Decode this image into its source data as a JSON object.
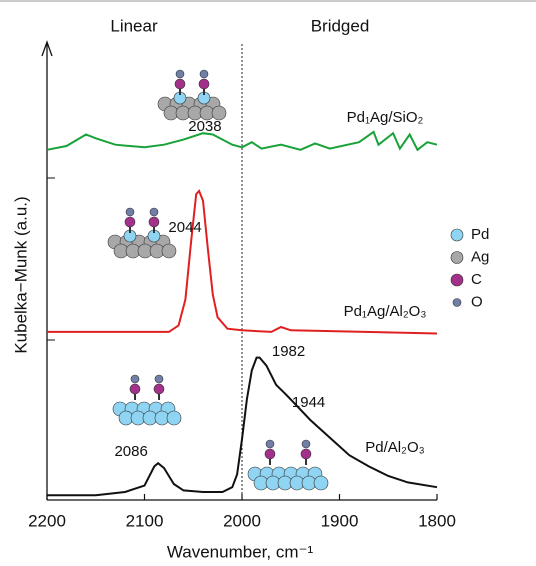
{
  "figure": {
    "ylabel": "Kubelka−Munk (a.u.)",
    "xlabel": "Wavenumber, cm⁻¹",
    "region_labels": [
      "Linear",
      "Bridged"
    ],
    "divider_x": 2000,
    "atom_legend": [
      {
        "label": "Pd",
        "color": "#8fd4f2"
      },
      {
        "label": "Ag",
        "color": "#a8a8a8"
      },
      {
        "label": "C",
        "color": "#a3308a"
      },
      {
        "label": "O",
        "color": "#6f7fa6"
      }
    ]
  },
  "chart_data": [
    {
      "type": "line",
      "name": "Pd₁Ag/SiO₂",
      "color": "#1aa23a",
      "xlim": [
        2200,
        1800
      ],
      "ylim": [
        0,
        1
      ],
      "x": [
        2200,
        2180,
        2160,
        2150,
        2130,
        2100,
        2080,
        2060,
        2040,
        2030,
        2010,
        2000,
        1990,
        1980,
        1960,
        1940,
        1925,
        1910,
        1880,
        1865,
        1860,
        1845,
        1838,
        1828,
        1820,
        1810,
        1800
      ],
      "values": [
        0.22,
        0.25,
        0.34,
        0.31,
        0.26,
        0.24,
        0.26,
        0.3,
        0.35,
        0.34,
        0.26,
        0.24,
        0.28,
        0.23,
        0.26,
        0.22,
        0.27,
        0.23,
        0.28,
        0.36,
        0.26,
        0.35,
        0.23,
        0.34,
        0.22,
        0.28,
        0.26
      ],
      "peak_labels": [
        2038
      ]
    },
    {
      "type": "line",
      "name": "Pd₁Ag/Al₂O₃",
      "color": "#e02020",
      "xlim": [
        2200,
        1800
      ],
      "ylim": [
        0,
        1
      ],
      "x": [
        2200,
        2100,
        2075,
        2065,
        2058,
        2052,
        2047,
        2044,
        2040,
        2035,
        2030,
        2025,
        2015,
        2000,
        1970,
        1960,
        1950,
        1800
      ],
      "values": [
        0.05,
        0.05,
        0.05,
        0.09,
        0.25,
        0.62,
        0.9,
        0.92,
        0.86,
        0.56,
        0.28,
        0.14,
        0.07,
        0.06,
        0.05,
        0.08,
        0.06,
        0.04
      ],
      "peak_labels": [
        2044
      ]
    },
    {
      "type": "line",
      "name": "Pd/Al₂O₃",
      "color": "#111111",
      "xlim": [
        2200,
        1800
      ],
      "ylim": [
        0,
        1
      ],
      "x": [
        2200,
        2150,
        2120,
        2100,
        2090,
        2086,
        2080,
        2070,
        2060,
        2040,
        2020,
        2010,
        2005,
        2000,
        1995,
        1990,
        1985,
        1982,
        1975,
        1965,
        1955,
        1944,
        1930,
        1910,
        1890,
        1870,
        1850,
        1830,
        1800
      ],
      "values": [
        0.03,
        0.03,
        0.05,
        0.09,
        0.21,
        0.23,
        0.2,
        0.1,
        0.06,
        0.05,
        0.05,
        0.08,
        0.16,
        0.38,
        0.63,
        0.81,
        0.89,
        0.89,
        0.84,
        0.72,
        0.66,
        0.59,
        0.5,
        0.39,
        0.28,
        0.21,
        0.15,
        0.11,
        0.08
      ],
      "peak_labels": [
        2086,
        1982,
        1944
      ],
      "xticks": [
        2200,
        2100,
        2000,
        1900,
        1800
      ]
    }
  ]
}
